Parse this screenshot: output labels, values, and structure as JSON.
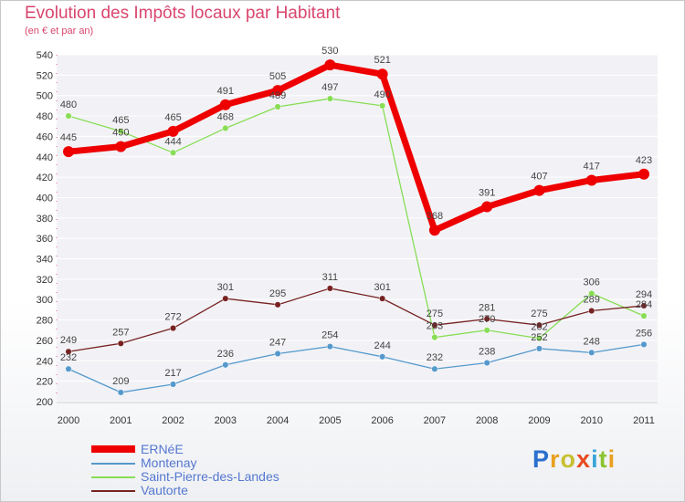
{
  "chart_data": {
    "type": "line",
    "title": "Evolution des Impôts locaux par Habitant",
    "subtitle": "(en € et par an)",
    "xlabel": "",
    "ylabel": "",
    "ylim": [
      200,
      540
    ],
    "y_ticks": [
      200,
      220,
      240,
      260,
      280,
      300,
      320,
      340,
      360,
      380,
      400,
      420,
      440,
      460,
      480,
      500,
      520,
      540
    ],
    "categories": [
      "2000",
      "2001",
      "2002",
      "2003",
      "2004",
      "2005",
      "2006",
      "2007",
      "2008",
      "2009",
      "2010",
      "2011"
    ],
    "legend_position": "bottom-left",
    "series": [
      {
        "name": "Montenay",
        "color": "#5599cc",
        "values": [
          232,
          209,
          217,
          236,
          247,
          254,
          244,
          232,
          238,
          252,
          248,
          256
        ]
      },
      {
        "name": "Saint-Pierre-des-Landes",
        "color": "#88dd55",
        "values": [
          480,
          465,
          444,
          468,
          489,
          497,
          490,
          263,
          270,
          262,
          306,
          284
        ]
      },
      {
        "name": "Vautorte",
        "color": "#772222",
        "values": [
          249,
          257,
          272,
          301,
          295,
          311,
          301,
          275,
          281,
          275,
          289,
          294
        ]
      },
      {
        "name": "ERNéE",
        "color": "#ee0000",
        "values": [
          445,
          450,
          465,
          491,
          505,
          530,
          521,
          368,
          391,
          407,
          417,
          423
        ]
      }
    ],
    "legend_order": [
      "ERNéE",
      "Montenay",
      "Saint-Pierre-des-Landes",
      "Vautorte"
    ]
  },
  "logo": {
    "letters": [
      "P",
      "r",
      "o",
      "x",
      "i",
      "t",
      "i"
    ],
    "colors": [
      "#2a6fcf",
      "#e8a020",
      "#c8c030",
      "#e84a20",
      "#3aa5d8",
      "#8ac430",
      "#e8a020"
    ]
  }
}
